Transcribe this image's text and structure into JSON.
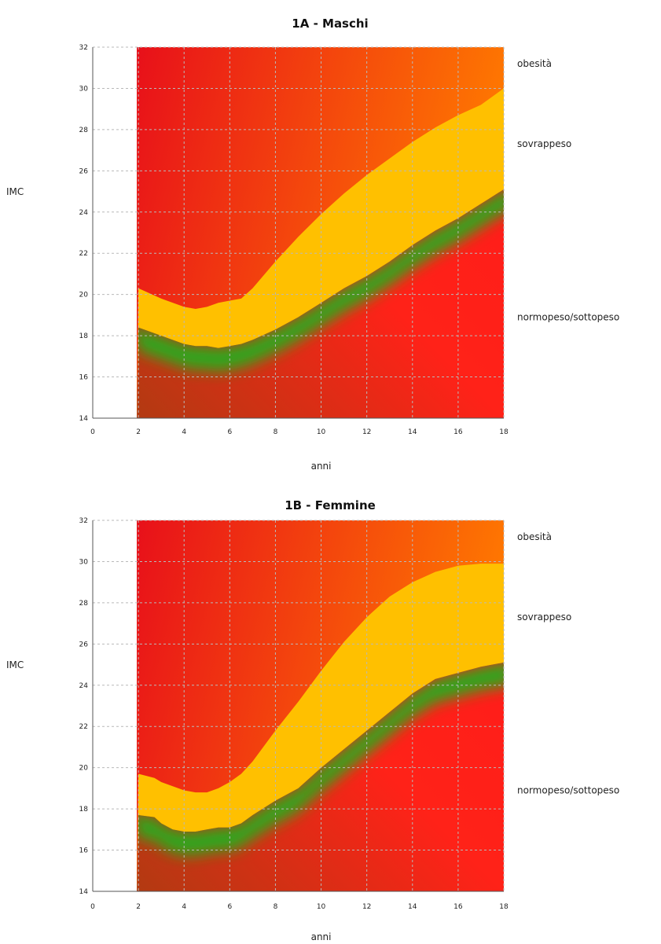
{
  "chart_data": [
    {
      "type": "area",
      "title": "1A - Maschi",
      "xlabel": "anni",
      "ylabel": "IMC",
      "xlim": [
        0,
        18
      ],
      "ylim": [
        14,
        32
      ],
      "x_ticks": [
        0,
        2,
        4,
        6,
        8,
        10,
        12,
        14,
        16,
        18
      ],
      "y_ticks": [
        14,
        16,
        18,
        20,
        22,
        24,
        26,
        28,
        30,
        32
      ],
      "grid": true,
      "zone_labels": [
        {
          "text": "obesità",
          "y": 31.2
        },
        {
          "text": "sovrappeso",
          "y": 27.3
        },
        {
          "text": "normopeso/sottopeso",
          "y": 18.9
        }
      ],
      "colors": {
        "normal": "#ff1a1a",
        "healthy": "#2ea81a",
        "overweight": "#ffc000",
        "obese_low": "#ff7a00",
        "obese_high": "#e8101a"
      },
      "x": [
        2,
        3,
        4,
        4.5,
        5,
        5.5,
        6,
        6.5,
        7,
        8,
        9,
        10,
        11,
        12,
        13,
        14,
        15,
        16,
        17,
        18
      ],
      "series": [
        {
          "values": [
            18.4,
            18.0,
            17.6,
            17.5,
            17.5,
            17.4,
            17.5,
            17.6,
            17.8,
            18.3,
            18.9,
            19.6,
            20.3,
            20.9,
            21.6,
            22.4,
            23.1,
            23.7,
            24.4,
            25.1
          ]
        },
        {
          "values": [
            20.3,
            19.8,
            19.4,
            19.3,
            19.4,
            19.6,
            19.7,
            19.8,
            20.3,
            21.6,
            22.8,
            23.9,
            24.9,
            25.8,
            26.6,
            27.4,
            28.1,
            28.7,
            29.2,
            30.0
          ]
        }
      ]
    },
    {
      "type": "area",
      "title": "1B - Femmine",
      "xlabel": "anni",
      "ylabel": "IMC",
      "xlim": [
        0,
        18
      ],
      "ylim": [
        14,
        32
      ],
      "x_ticks": [
        0,
        2,
        4,
        6,
        8,
        10,
        12,
        14,
        16,
        18
      ],
      "y_ticks": [
        14,
        16,
        18,
        20,
        22,
        24,
        26,
        28,
        30,
        32
      ],
      "grid": true,
      "zone_labels": [
        {
          "text": "obesità",
          "y": 31.2
        },
        {
          "text": "sovrappeso",
          "y": 27.3
        },
        {
          "text": "normopeso/sottopeso",
          "y": 18.9
        }
      ],
      "colors": {
        "normal": "#ff1a1a",
        "healthy": "#2ea81a",
        "overweight": "#ffc000",
        "obese_low": "#ff7a00",
        "obese_high": "#e8101a"
      },
      "x": [
        2,
        2.7,
        3,
        3.5,
        4,
        4.5,
        5,
        5.5,
        6,
        6.5,
        7,
        8,
        9,
        10,
        11,
        12,
        13,
        14,
        15,
        16,
        17,
        18
      ],
      "series": [
        {
          "values": [
            17.7,
            17.6,
            17.3,
            17.0,
            16.9,
            16.9,
            17.0,
            17.1,
            17.1,
            17.3,
            17.7,
            18.4,
            19.0,
            20.0,
            20.9,
            21.8,
            22.7,
            23.6,
            24.3,
            24.6,
            24.9,
            25.1
          ]
        },
        {
          "values": [
            19.7,
            19.5,
            19.3,
            19.1,
            18.9,
            18.8,
            18.8,
            19.0,
            19.3,
            19.7,
            20.3,
            21.8,
            23.2,
            24.7,
            26.1,
            27.3,
            28.3,
            29.0,
            29.5,
            29.8,
            29.9,
            29.9
          ]
        }
      ]
    }
  ]
}
